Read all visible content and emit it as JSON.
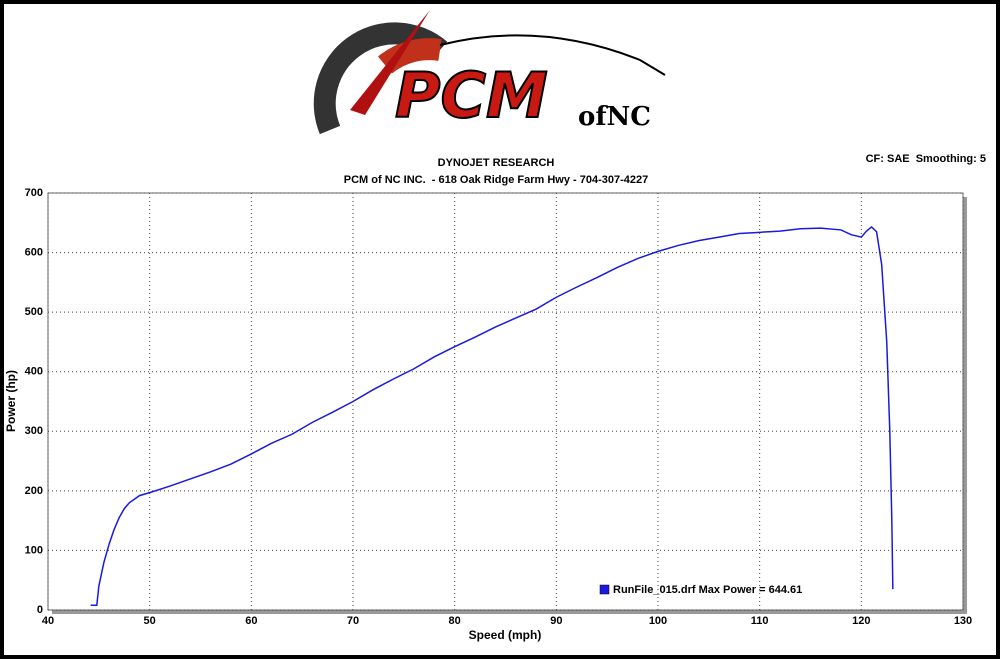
{
  "chart_data": {
    "type": "line",
    "logo": "PCM",
    "logo_suffix": "ofNC",
    "title": "DYNOJET RESEARCH",
    "subtitle": "PCM of NC INC.  - 618 Oak Ridge Farm Hwy - 704-307-4227",
    "settings_note": "CF: SAE  Smoothing: 5",
    "x_label": "Speed (mph)",
    "y_label": "Power (hp)",
    "xlim": [
      40,
      130
    ],
    "xticks": [
      40,
      50,
      60,
      70,
      80,
      90,
      100,
      110,
      120,
      130
    ],
    "ylim": [
      0,
      700
    ],
    "yticks": [
      0,
      100,
      200,
      300,
      400,
      500,
      600,
      700
    ],
    "grid": true,
    "x": [
      44.2,
      44.8,
      45.0,
      45.5,
      46,
      46.5,
      47,
      47.5,
      48,
      49,
      50,
      52,
      54,
      56,
      58,
      60,
      62,
      64,
      66,
      68,
      70,
      72,
      74,
      76,
      78,
      80,
      82,
      84,
      86,
      88,
      90,
      92,
      94,
      96,
      98,
      100,
      102,
      104,
      106,
      108,
      110,
      112,
      114,
      116,
      118,
      119,
      120,
      120.5,
      121,
      121.5,
      122,
      122.5,
      122.8,
      123,
      123.1
    ],
    "series": [
      {
        "name": "RunFile_015.drf Max Power = 644.61",
        "color": "#1a1adf",
        "values": [
          8,
          8,
          40,
          80,
          110,
          135,
          155,
          170,
          180,
          192,
          197,
          208,
          220,
          232,
          245,
          262,
          280,
          295,
          315,
          332,
          350,
          370,
          388,
          405,
          425,
          442,
          458,
          475,
          490,
          505,
          525,
          542,
          558,
          575,
          590,
          602,
          612,
          620,
          626,
          632,
          634,
          636,
          640,
          641,
          638,
          630,
          626,
          636,
          643,
          635,
          580,
          450,
          300,
          150,
          35
        ]
      }
    ]
  }
}
